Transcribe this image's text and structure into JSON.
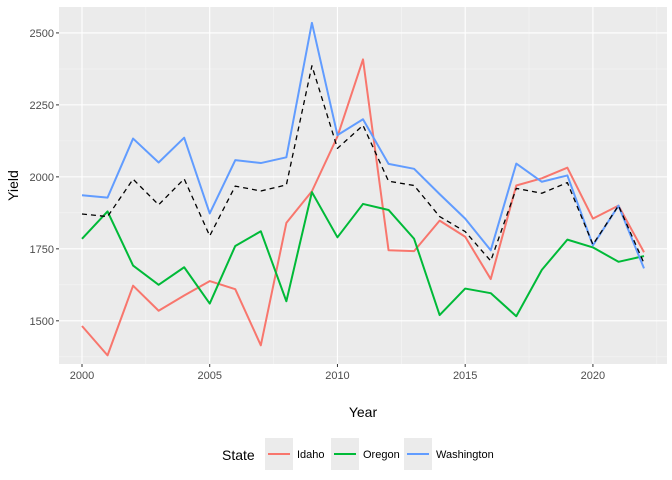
{
  "chart_data": {
    "type": "line",
    "title": "",
    "xlabel": "Year",
    "ylabel": "Yield",
    "xlim": [
      1999.1,
      2022.9
    ],
    "ylim": [
      1350,
      2590
    ],
    "x_ticks": [
      2000,
      2005,
      2010,
      2015,
      2020
    ],
    "y_ticks": [
      1500,
      1750,
      2000,
      2250,
      2500
    ],
    "x_minor_ticks": [
      2002.5,
      2007.5,
      2012.5,
      2017.5,
      2022.5
    ],
    "y_minor_ticks": [
      1375,
      1625,
      1875,
      2125,
      2375
    ],
    "grid": true,
    "background": "#ebebeb",
    "legend": {
      "title": "State",
      "position": "bottom"
    },
    "x": [
      2000,
      2001,
      2002,
      2003,
      2004,
      2005,
      2006,
      2007,
      2008,
      2009,
      2010,
      2011,
      2012,
      2013,
      2014,
      2015,
      2016,
      2017,
      2018,
      2019,
      2020,
      2021,
      2022
    ],
    "series": [
      {
        "name": "Idaho",
        "color": "#F8766D",
        "values": [
          1482,
          1380,
          1622,
          1535,
          1588,
          1638,
          1610,
          1415,
          1840,
          1950,
          2140,
          2408,
          1745,
          1742,
          1848,
          1792,
          1645,
          1970,
          1995,
          2032,
          1855,
          1900,
          1738
        ]
      },
      {
        "name": "Oregon",
        "color": "#00BA38",
        "values": [
          1785,
          1880,
          1692,
          1625,
          1686,
          1560,
          1760,
          1811,
          1568,
          1947,
          1790,
          1906,
          1885,
          1785,
          1520,
          1612,
          1596,
          1516,
          1677,
          1782,
          1755,
          1705,
          1725
        ]
      },
      {
        "name": "Washington",
        "color": "#619CFF",
        "values": [
          1936,
          1928,
          2133,
          2050,
          2136,
          1873,
          2058,
          2048,
          2068,
          2535,
          2145,
          2200,
          2045,
          2028,
          1940,
          1855,
          1745,
          2046,
          1983,
          2005,
          1762,
          1900,
          1682
        ]
      },
      {
        "role": "average",
        "color": "#000000",
        "dashed": true,
        "values": [
          1871,
          1862,
          1992,
          1903,
          1993,
          1795,
          1968,
          1951,
          1972,
          2386,
          2099,
          2179,
          1985,
          1970,
          1862,
          1810,
          1708,
          1960,
          1943,
          1980,
          1765,
          1900,
          1700
        ]
      }
    ]
  }
}
